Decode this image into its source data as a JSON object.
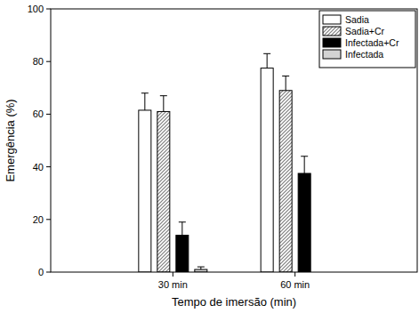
{
  "chart_data": {
    "type": "bar",
    "x_label": "Tempo de imersão (min)",
    "y_label": "Emergência (%)",
    "categories": [
      "30 min",
      "60 min"
    ],
    "series": [
      {
        "name": "Sadia",
        "color": "#ffffff",
        "values": [
          61.5,
          77.5
        ],
        "errors": [
          6.5,
          5.5
        ]
      },
      {
        "name": "Sadia+Cr",
        "color": "#808080",
        "line_style": "hatched",
        "values": [
          61,
          69
        ],
        "errors": [
          6,
          5.5
        ]
      },
      {
        "name": "Infectada+Cr",
        "color": "#000000",
        "values": [
          14,
          37.5
        ],
        "errors": [
          5,
          6.5
        ]
      },
      {
        "name": "Infectada",
        "color": "#d3d3d3",
        "values": [
          1,
          null
        ],
        "errors": [
          1,
          null
        ]
      }
    ],
    "ylim": [
      0,
      100
    ],
    "yticks": [
      0,
      20,
      40,
      60,
      80,
      100
    ],
    "grid": false,
    "legend": "upper right"
  }
}
